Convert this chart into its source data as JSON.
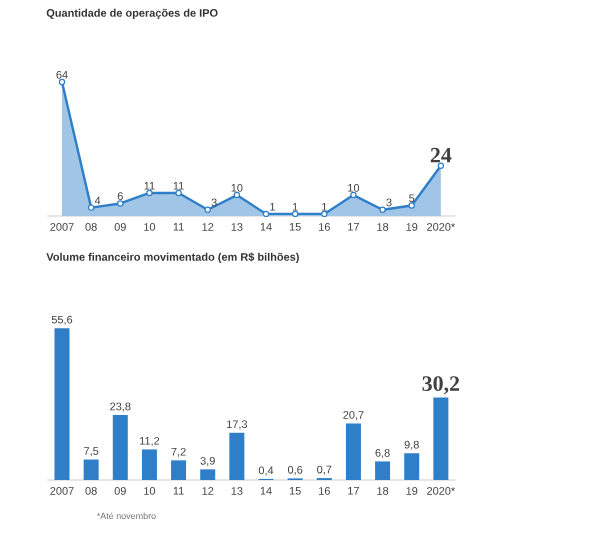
{
  "chart_data": [
    {
      "type": "area",
      "title": "Quantidade de operações de IPO",
      "categories": [
        "2007",
        "08",
        "09",
        "10",
        "11",
        "12",
        "13",
        "14",
        "15",
        "16",
        "17",
        "18",
        "19",
        "2020*"
      ],
      "values": [
        64,
        4,
        6,
        11,
        11,
        3,
        10,
        1,
        1,
        1,
        10,
        3,
        5,
        24
      ],
      "color": "#2f7fc8",
      "data_labels": true,
      "marker": "circle"
    },
    {
      "type": "bar",
      "title": "Volume financeiro movimentado (em R$ bilhões)",
      "categories": [
        "2007",
        "08",
        "09",
        "10",
        "11",
        "12",
        "13",
        "14",
        "15",
        "16",
        "17",
        "18",
        "19",
        "2020*"
      ],
      "values": [
        55.6,
        7.5,
        23.8,
        11.2,
        7.2,
        3.9,
        17.3,
        0.4,
        0.6,
        0.7,
        20.7,
        6.8,
        9.8,
        30.2
      ],
      "value_labels": [
        "55,6",
        "7,5",
        "23,8",
        "11,2",
        "7,2",
        "3,9",
        "17,3",
        "0,4",
        "0,6",
        "0,7",
        "20,7",
        "6,8",
        "9,8",
        "30,2"
      ],
      "color": "#2f7fc8",
      "annotations": [
        "*Até novembro"
      ]
    }
  ]
}
